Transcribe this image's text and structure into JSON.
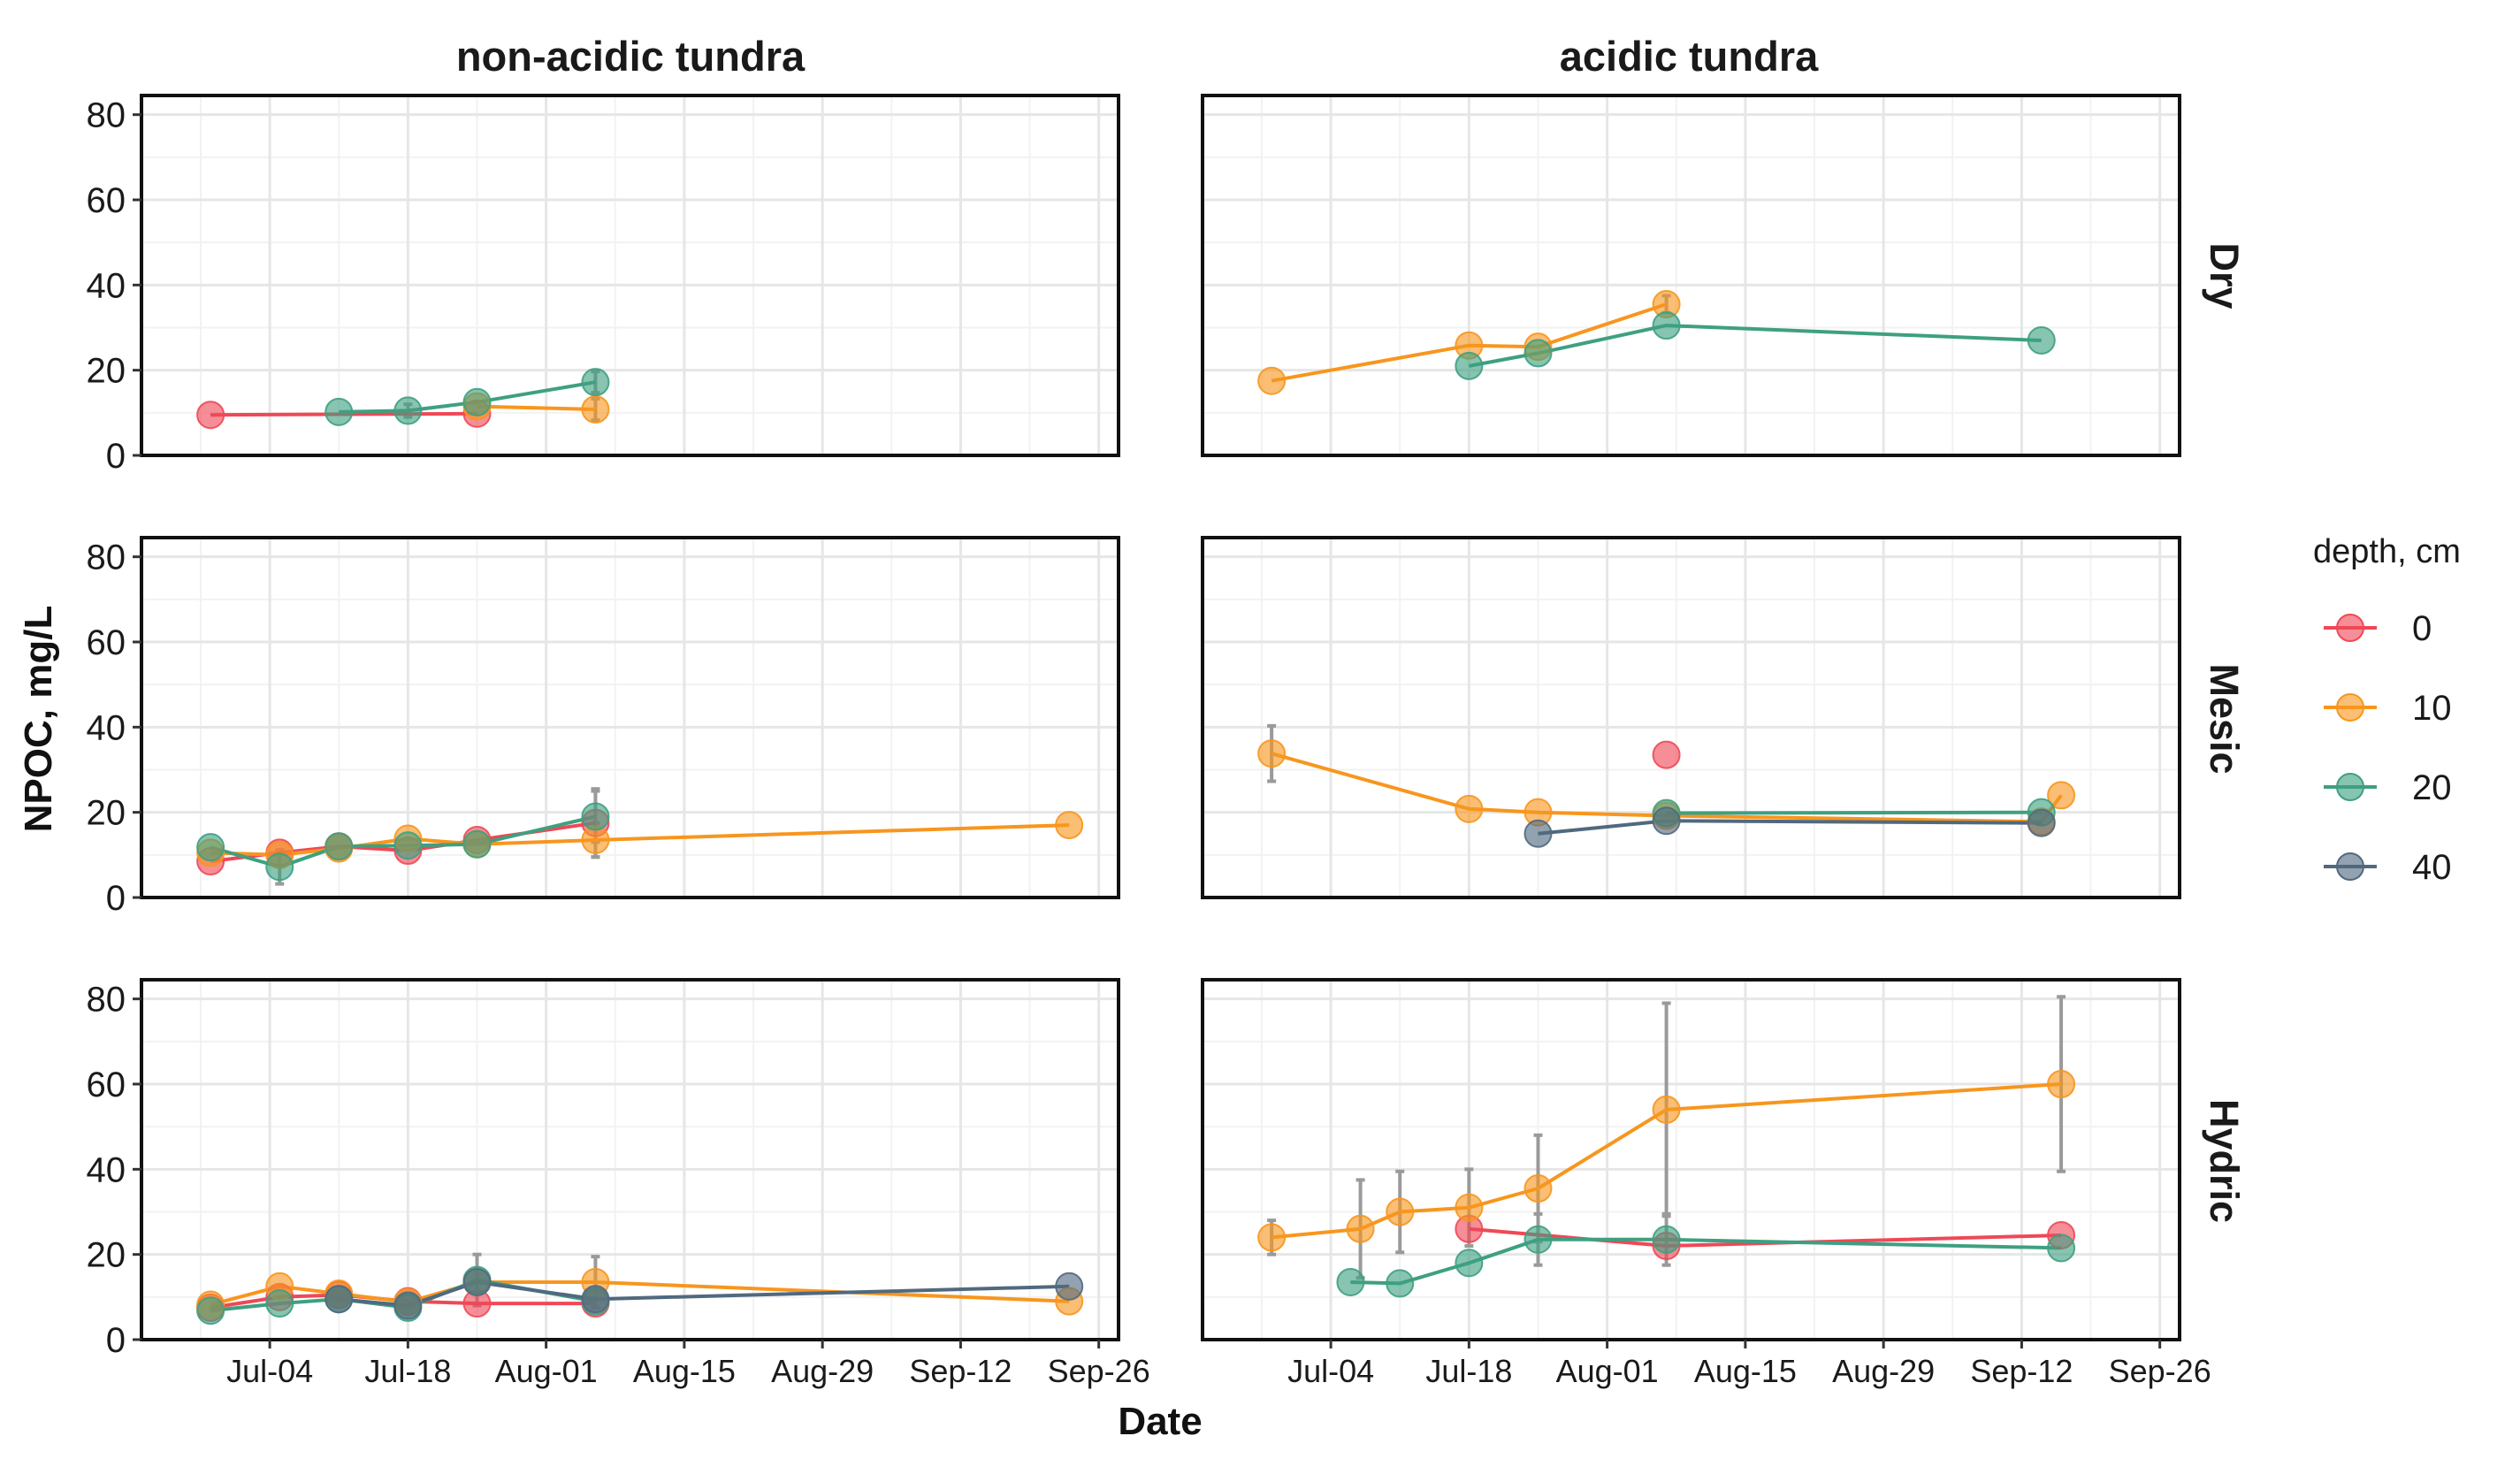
{
  "chart_data": {
    "type": "line",
    "xlabel": "Date",
    "ylabel": "NPOC, mg/L",
    "ylim": [
      0,
      80
    ],
    "y_ticks": [
      "0",
      "20",
      "40",
      "60",
      "80"
    ],
    "x_ticks": [
      "Jul-04",
      "Jul-18",
      "Aug-01",
      "Aug-15",
      "Aug-29",
      "Sep-12",
      "Sep-26"
    ],
    "x_tick_dates": [
      "2019-07-04",
      "2019-07-18",
      "2019-08-01",
      "2019-08-15",
      "2019-08-29",
      "2019-09-12",
      "2019-09-26"
    ],
    "x_range": [
      "2019-06-21",
      "2019-09-28"
    ],
    "grid": true,
    "columns": [
      "non-acidic tundra",
      "acidic tundra"
    ],
    "rows": [
      "Dry",
      "Mesic",
      "Hydric"
    ],
    "legend": {
      "title": "depth, cm",
      "placement": "right",
      "entries": [
        {
          "label": "0",
          "color": "#ef4857"
        },
        {
          "label": "10",
          "color": "#f7961e"
        },
        {
          "label": "20",
          "color": "#3ea081"
        },
        {
          "label": "40",
          "color": "#50697f"
        }
      ]
    },
    "panels": [
      {
        "column": "non-acidic tundra",
        "row": "Dry",
        "series": [
          {
            "depth": "0",
            "points": [
              {
                "x": "2019-06-28",
                "y": 9.5
              },
              {
                "x": "2019-07-25",
                "y": 9.8
              }
            ]
          },
          {
            "depth": "10",
            "points": [
              {
                "x": "2019-07-25",
                "y": 11.5
              },
              {
                "x": "2019-08-06",
                "y": 10.8,
                "err": 2.5
              }
            ]
          },
          {
            "depth": "20",
            "points": [
              {
                "x": "2019-07-11",
                "y": 10.2
              },
              {
                "x": "2019-07-18",
                "y": 10.5,
                "err": 1.5
              },
              {
                "x": "2019-07-25",
                "y": 12.5
              },
              {
                "x": "2019-08-06",
                "y": 17.2,
                "err": 2.5
              }
            ]
          }
        ]
      },
      {
        "column": "acidic tundra",
        "row": "Dry",
        "series": [
          {
            "depth": "10",
            "points": [
              {
                "x": "2019-06-28",
                "y": 17.5
              },
              {
                "x": "2019-07-18",
                "y": 25.8
              },
              {
                "x": "2019-07-25",
                "y": 25.5
              },
              {
                "x": "2019-08-07",
                "y": 35.5,
                "err": 2.0
              }
            ]
          },
          {
            "depth": "20",
            "points": [
              {
                "x": "2019-07-18",
                "y": 21.0
              },
              {
                "x": "2019-07-25",
                "y": 24.0
              },
              {
                "x": "2019-08-07",
                "y": 30.5
              },
              {
                "x": "2019-09-14",
                "y": 27.0
              }
            ]
          }
        ]
      },
      {
        "column": "non-acidic tundra",
        "row": "Mesic",
        "series": [
          {
            "depth": "0",
            "points": [
              {
                "x": "2019-06-28",
                "y": 8.5
              },
              {
                "x": "2019-07-05",
                "y": 10.5
              },
              {
                "x": "2019-07-11",
                "y": 12.0
              },
              {
                "x": "2019-07-18",
                "y": 11.0
              },
              {
                "x": "2019-07-25",
                "y": 13.5
              },
              {
                "x": "2019-08-06",
                "y": 17.5,
                "err": 8.0
              }
            ]
          },
          {
            "depth": "10",
            "points": [
              {
                "x": "2019-06-28",
                "y": 10.5
              },
              {
                "x": "2019-07-05",
                "y": 10.0
              },
              {
                "x": "2019-07-11",
                "y": 11.5
              },
              {
                "x": "2019-07-18",
                "y": 13.8
              },
              {
                "x": "2019-07-25",
                "y": 12.5
              },
              {
                "x": "2019-08-06",
                "y": 13.5,
                "err": 4.0
              },
              {
                "x": "2019-09-23",
                "y": 17.0
              }
            ]
          },
          {
            "depth": "20",
            "points": [
              {
                "x": "2019-06-28",
                "y": 11.8
              },
              {
                "x": "2019-07-05",
                "y": 7.2,
                "err": 4.0
              },
              {
                "x": "2019-07-11",
                "y": 12.0
              },
              {
                "x": "2019-07-18",
                "y": 12.2
              },
              {
                "x": "2019-07-25",
                "y": 12.5
              },
              {
                "x": "2019-08-06",
                "y": 19.0,
                "err": 6.0
              }
            ]
          }
        ]
      },
      {
        "column": "acidic tundra",
        "row": "Mesic",
        "series": [
          {
            "depth": "0",
            "points": [
              {
                "x": "2019-08-07",
                "y": 33.5
              }
            ]
          },
          {
            "depth": "10",
            "points": [
              {
                "x": "2019-06-28",
                "y": 33.8,
                "err": 6.5
              },
              {
                "x": "2019-07-18",
                "y": 20.8
              },
              {
                "x": "2019-07-25",
                "y": 20.0
              },
              {
                "x": "2019-08-07",
                "y": 19.2
              },
              {
                "x": "2019-09-14",
                "y": 17.8
              },
              {
                "x": "2019-09-16",
                "y": 24.0
              }
            ]
          },
          {
            "depth": "20",
            "points": [
              {
                "x": "2019-08-07",
                "y": 19.8
              },
              {
                "x": "2019-09-14",
                "y": 20.0
              }
            ]
          },
          {
            "depth": "40",
            "points": [
              {
                "x": "2019-07-25",
                "y": 15.0
              },
              {
                "x": "2019-08-07",
                "y": 18.0
              },
              {
                "x": "2019-09-14",
                "y": 17.5
              }
            ]
          }
        ]
      },
      {
        "column": "non-acidic tundra",
        "row": "Hydric",
        "series": [
          {
            "depth": "0",
            "points": [
              {
                "x": "2019-06-28",
                "y": 7.5
              },
              {
                "x": "2019-07-05",
                "y": 10.0
              },
              {
                "x": "2019-07-11",
                "y": 10.5
              },
              {
                "x": "2019-07-18",
                "y": 9.0
              },
              {
                "x": "2019-07-25",
                "y": 8.5
              },
              {
                "x": "2019-08-06",
                "y": 8.5
              }
            ]
          },
          {
            "depth": "10",
            "points": [
              {
                "x": "2019-06-28",
                "y": 8.2
              },
              {
                "x": "2019-07-05",
                "y": 12.5
              },
              {
                "x": "2019-07-11",
                "y": 10.8
              },
              {
                "x": "2019-07-18",
                "y": 8.8
              },
              {
                "x": "2019-07-25",
                "y": 13.5
              },
              {
                "x": "2019-08-06",
                "y": 13.5,
                "err": 6.0
              },
              {
                "x": "2019-09-23",
                "y": 9.0
              }
            ]
          },
          {
            "depth": "20",
            "points": [
              {
                "x": "2019-06-28",
                "y": 6.8
              },
              {
                "x": "2019-07-05",
                "y": 8.5
              },
              {
                "x": "2019-07-11",
                "y": 9.5
              },
              {
                "x": "2019-07-18",
                "y": 7.5
              },
              {
                "x": "2019-07-25",
                "y": 14.0,
                "err": 6.0
              },
              {
                "x": "2019-08-06",
                "y": 9.0
              }
            ]
          },
          {
            "depth": "40",
            "points": [
              {
                "x": "2019-07-11",
                "y": 9.5
              },
              {
                "x": "2019-07-18",
                "y": 8.0
              },
              {
                "x": "2019-07-25",
                "y": 13.5
              },
              {
                "x": "2019-08-06",
                "y": 9.5
              },
              {
                "x": "2019-09-23",
                "y": 12.5
              }
            ]
          }
        ]
      },
      {
        "column": "acidic tundra",
        "row": "Hydric",
        "series": [
          {
            "depth": "0",
            "points": [
              {
                "x": "2019-07-18",
                "y": 26.0
              },
              {
                "x": "2019-08-07",
                "y": 22.0
              },
              {
                "x": "2019-09-16",
                "y": 24.5
              }
            ]
          },
          {
            "depth": "10",
            "points": [
              {
                "x": "2019-06-28",
                "y": 24.0,
                "err": 4.0
              },
              {
                "x": "2019-07-07",
                "y": 26.0,
                "err": 11.5
              },
              {
                "x": "2019-07-11",
                "y": 30.0,
                "err": 9.5
              },
              {
                "x": "2019-07-18",
                "y": 31.0,
                "err": 9.0
              },
              {
                "x": "2019-07-25",
                "y": 35.5,
                "err": 12.5
              },
              {
                "x": "2019-08-07",
                "y": 54.0,
                "err": 25.0
              },
              {
                "x": "2019-09-16",
                "y": 60.0,
                "err": 20.5
              }
            ]
          },
          {
            "depth": "20",
            "points": [
              {
                "x": "2019-07-06",
                "y": 13.5
              },
              {
                "x": "2019-07-11",
                "y": 13.2
              },
              {
                "x": "2019-07-18",
                "y": 18.0
              },
              {
                "x": "2019-07-25",
                "y": 23.5,
                "err": 6.0
              },
              {
                "x": "2019-08-07",
                "y": 23.5,
                "err": 6.0
              },
              {
                "x": "2019-09-16",
                "y": 21.5
              }
            ]
          }
        ]
      }
    ]
  }
}
